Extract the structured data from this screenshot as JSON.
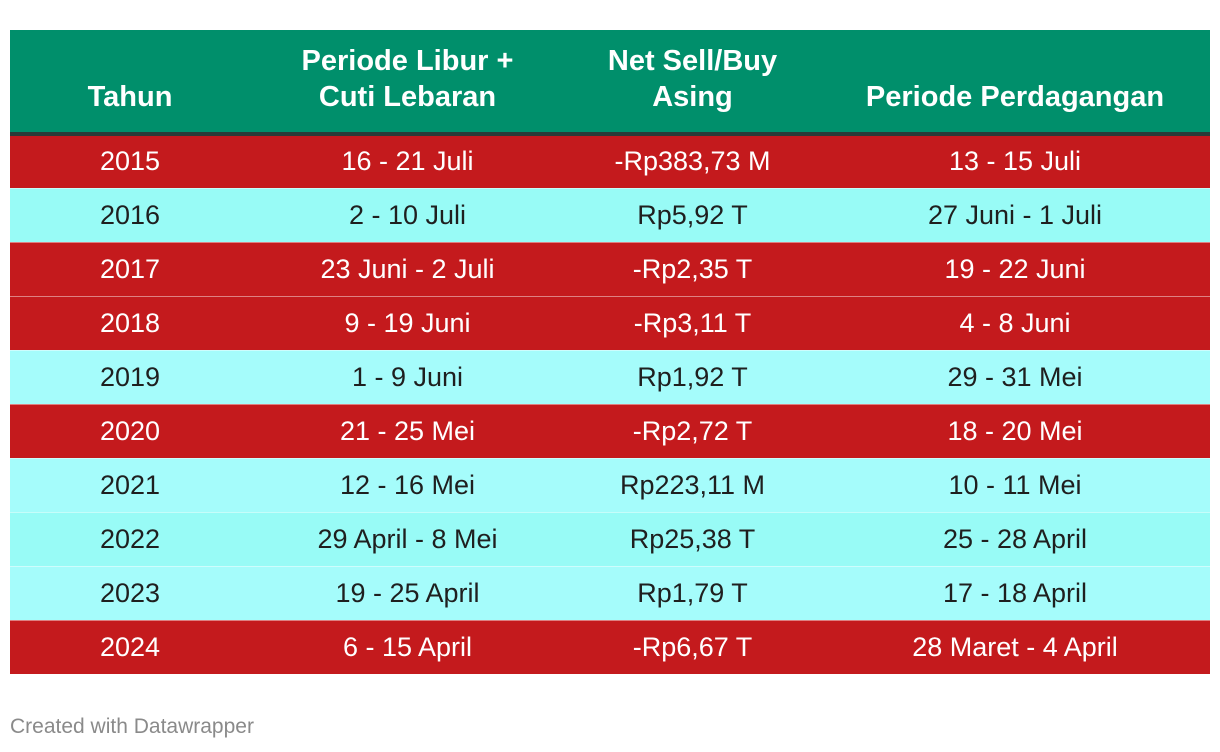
{
  "chart_data": {
    "type": "table",
    "columns": [
      "Tahun",
      "Periode Libur + Cuti Lebaran",
      "Net Sell/Buy Asing",
      "Periode Perdagangan"
    ],
    "rows": [
      {
        "year": "2015",
        "libur": "16 - 21 Juli",
        "net": "-Rp383,73 M",
        "perdagangan": "13 - 15 Juli",
        "sign": "neg"
      },
      {
        "year": "2016",
        "libur": "2 - 10 Juli",
        "net": "Rp5,92 T",
        "perdagangan": "27 Juni - 1 Juli",
        "sign": "pos"
      },
      {
        "year": "2017",
        "libur": "23 Juni - 2 Juli",
        "net": "-Rp2,35 T",
        "perdagangan": "19 - 22 Juni",
        "sign": "neg"
      },
      {
        "year": "2018",
        "libur": "9 - 19 Juni",
        "net": "-Rp3,11 T",
        "perdagangan": "4 - 8 Juni",
        "sign": "neg"
      },
      {
        "year": "2019",
        "libur": "1 - 9 Juni",
        "net": "Rp1,92 T",
        "perdagangan": "29 - 31 Mei",
        "sign": "pos"
      },
      {
        "year": "2020",
        "libur": "21 - 25 Mei",
        "net": "-Rp2,72 T",
        "perdagangan": "18 - 20 Mei",
        "sign": "neg"
      },
      {
        "year": "2021",
        "libur": "12 - 16 Mei",
        "net": "Rp223,11 M",
        "perdagangan": "10 - 11 Mei",
        "sign": "pos"
      },
      {
        "year": "2022",
        "libur": "29 April - 8 Mei",
        "net": "Rp25,38 T",
        "perdagangan": "25 - 28 April",
        "sign": "pos"
      },
      {
        "year": "2023",
        "libur": "19 - 25 April",
        "net": "Rp1,79 T",
        "perdagangan": "17 - 18 April",
        "sign": "pos"
      },
      {
        "year": "2024",
        "libur": "6 - 15 April",
        "net": "-Rp6,67 T",
        "perdagangan": "28 Maret - 4 April",
        "sign": "neg"
      }
    ]
  },
  "header": {
    "tahun": "Tahun",
    "libur_line1": "Periode Libur +",
    "libur_line2": "Cuti Lebaran",
    "net_line1": "Net Sell/Buy",
    "net_line2": "Asing",
    "perdagangan": "Periode Perdagangan"
  },
  "colors": {
    "header": "#008f6b",
    "negative_row": "#c41a1d",
    "positive_row": "#a5fcfb"
  },
  "footer": {
    "credit": "Created with Datawrapper"
  }
}
